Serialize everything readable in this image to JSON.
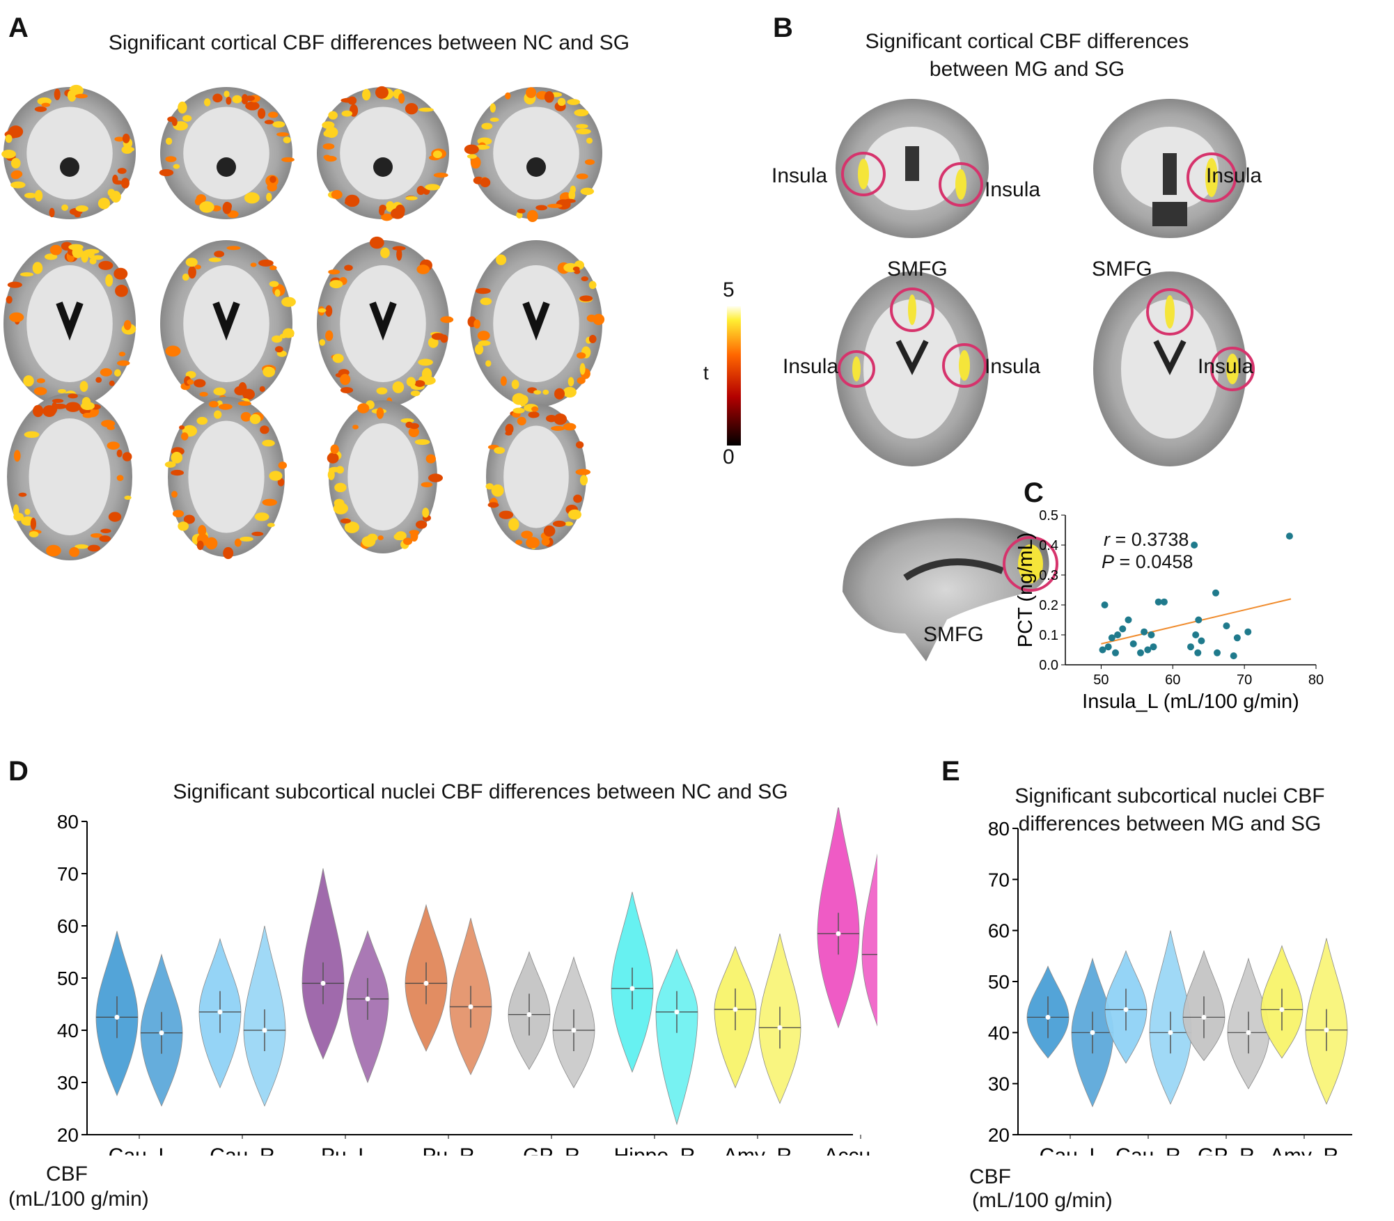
{
  "panelA": {
    "letter": "A",
    "title": "Significant cortical CBF differences between NC and SG",
    "colorbar": {
      "label": "t",
      "max": "5",
      "min": "0"
    }
  },
  "panelB": {
    "letter": "B",
    "title_line1": "Significant cortical CBF differences",
    "title_line2": "between MG and SG",
    "labels": {
      "insula": "Insula",
      "smfg": "SMFG"
    },
    "highlight_color": "#d6336c"
  },
  "panelC": {
    "letter": "C",
    "r_label": "r",
    "r_value": " = 0.3738",
    "p_label": "P",
    "p_value": " = 0.0458"
  },
  "panelD": {
    "letter": "D",
    "title": "Significant subcortical nuclei CBF differences between NC and SG",
    "yaxis_label_line1": "CBF",
    "yaxis_label_line2": "(mL/100 g/min)"
  },
  "panelE": {
    "letter": "E",
    "title_line1": "Significant subcortical nuclei CBF",
    "title_line2": "differences between MG and SG",
    "yaxis_label_line1": "CBF",
    "yaxis_label_line2": "(mL/100 g/min)"
  },
  "chart_data": [
    {
      "id": "C",
      "type": "scatter",
      "xlabel": "Insula_L (mL/100 g/min)",
      "ylabel": "PCT (ng/mL)",
      "xlim": [
        45,
        80
      ],
      "ylim": [
        0.0,
        0.5
      ],
      "xticks": [
        "50",
        "60",
        "70",
        "80"
      ],
      "yticks": [
        "0.0",
        "0.1",
        "0.2",
        "0.3",
        "0.4",
        "0.5"
      ],
      "point_color": "#1f7a8c",
      "line_color": "#f08c2e",
      "points": [
        [
          50.2,
          0.05
        ],
        [
          50.5,
          0.2
        ],
        [
          51.0,
          0.06
        ],
        [
          51.5,
          0.09
        ],
        [
          52.0,
          0.04
        ],
        [
          52.3,
          0.1
        ],
        [
          53.0,
          0.12
        ],
        [
          53.8,
          0.15
        ],
        [
          54.5,
          0.07
        ],
        [
          55.5,
          0.04
        ],
        [
          56.0,
          0.11
        ],
        [
          56.5,
          0.05
        ],
        [
          57.0,
          0.1
        ],
        [
          57.3,
          0.06
        ],
        [
          58.0,
          0.21
        ],
        [
          58.8,
          0.21
        ],
        [
          62.5,
          0.06
        ],
        [
          63.0,
          0.4
        ],
        [
          63.2,
          0.1
        ],
        [
          63.5,
          0.04
        ],
        [
          63.6,
          0.15
        ],
        [
          64.0,
          0.08
        ],
        [
          66.0,
          0.24
        ],
        [
          66.2,
          0.04
        ],
        [
          67.5,
          0.13
        ],
        [
          68.5,
          0.03
        ],
        [
          69.0,
          0.09
        ],
        [
          70.5,
          0.11
        ],
        [
          76.3,
          0.43
        ]
      ],
      "fit_line": [
        [
          50.0,
          0.07
        ],
        [
          76.5,
          0.22
        ]
      ]
    },
    {
      "id": "D",
      "type": "violin",
      "title": "Significant subcortical nuclei CBF differences between NC and SG",
      "ylabel": "CBF (mL/100 g/min)",
      "ylim": [
        20,
        80
      ],
      "yticks": [
        "20",
        "30",
        "40",
        "50",
        "60",
        "70",
        "80"
      ],
      "categories": [
        "Cau_L",
        "Cau_R",
        "Pu_L",
        "Pu_R",
        "GP_R",
        "Hippo_R",
        "Amy_R",
        "Accu_R"
      ],
      "colors": [
        "#4a9fd6",
        "#8fd2f5",
        "#9b62a8",
        "#e0875a",
        "#c4c4c4",
        "#5ff0f0",
        "#f8f36a",
        "#ee52c2"
      ],
      "series": [
        {
          "group": "left",
          "min": [
            27.5,
            29.0,
            34.5,
            36.0,
            32.5,
            32.0,
            29.0,
            40.5
          ],
          "max": [
            59.0,
            57.5,
            71.0,
            64.0,
            55.0,
            66.5,
            56.0,
            83.0
          ],
          "median": [
            42.5,
            43.5,
            49.0,
            49.0,
            43.0,
            48.0,
            44.0,
            58.5
          ]
        },
        {
          "group": "right",
          "min": [
            25.5,
            25.5,
            30.0,
            31.5,
            29.0,
            22.0,
            26.0,
            38.0
          ],
          "max": [
            54.5,
            60.0,
            59.0,
            61.5,
            54.0,
            55.5,
            58.5,
            79.5
          ],
          "median": [
            39.5,
            40.0,
            46.0,
            44.5,
            40.0,
            43.5,
            40.5,
            54.5
          ]
        }
      ]
    },
    {
      "id": "E",
      "type": "violin",
      "title": "Significant subcortical nuclei CBF differences between MG and SG",
      "ylabel": "CBF (mL/100 g/min)",
      "ylim": [
        20,
        80
      ],
      "yticks": [
        "20",
        "30",
        "40",
        "50",
        "60",
        "70",
        "80"
      ],
      "categories": [
        "Cau_L",
        "Cau_R",
        "GP_R",
        "Amy_R"
      ],
      "colors": [
        "#4a9fd6",
        "#8fd2f5",
        "#c4c4c4",
        "#f8f36a"
      ],
      "series": [
        {
          "group": "left",
          "min": [
            35.0,
            34.0,
            34.5,
            35.0
          ],
          "max": [
            53.0,
            56.0,
            56.0,
            57.0
          ],
          "median": [
            43.0,
            44.5,
            43.0,
            44.5
          ]
        },
        {
          "group": "right",
          "min": [
            25.5,
            26.0,
            29.0,
            26.0
          ],
          "max": [
            54.5,
            60.0,
            54.5,
            58.5
          ],
          "median": [
            40.0,
            40.0,
            40.0,
            40.5
          ]
        }
      ]
    }
  ]
}
